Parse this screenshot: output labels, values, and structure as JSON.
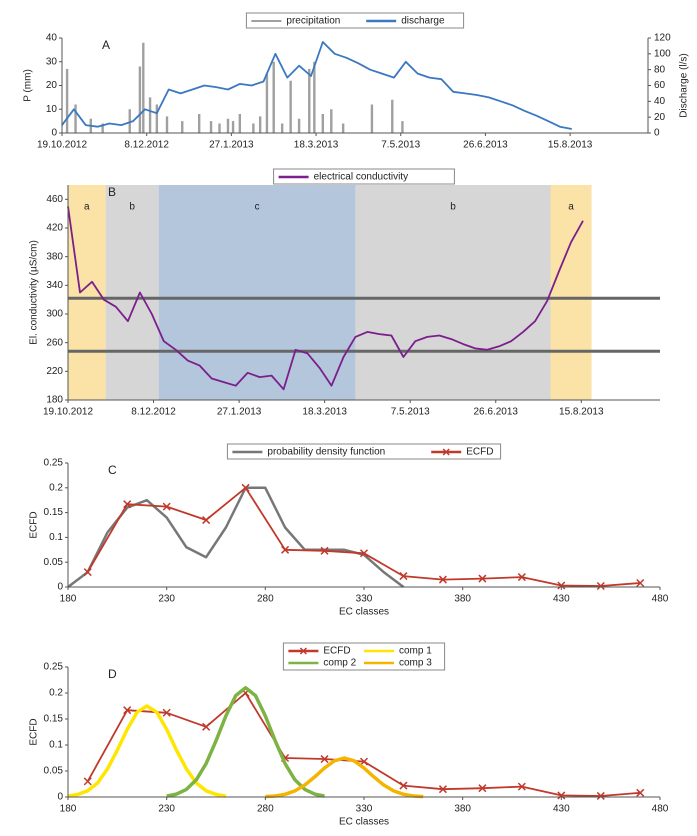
{
  "chart_data": [
    {
      "type": "combo",
      "label": "A",
      "ylabel": "P (mm)",
      "y2label": "Discharge (l/s)",
      "xlim": [
        "19.10.2012",
        "30.9.2013"
      ],
      "xticks": [
        "19.10.2012",
        "8.12.2012",
        "27.1.2013",
        "18.3.2013",
        "7.5.2013",
        "26.6.2013",
        "15.8.2013"
      ],
      "ylim": [
        0,
        40
      ],
      "yticks": [
        0,
        10,
        20,
        30,
        40
      ],
      "y2lim": [
        0,
        120
      ],
      "y2ticks": [
        0,
        20,
        40,
        60,
        80,
        100,
        120
      ],
      "series": [
        {
          "name": "precipitation",
          "type": "bar",
          "color": "#a0a0a0",
          "x": [
            "22.10.2012",
            "27.10.2012",
            "5.11.2012",
            "12.11.2012",
            "28.11.2012",
            "4.12.2012",
            "6.12.2012",
            "10.12.2012",
            "14.12.2012",
            "20.12.2012",
            "29.12.2012",
            "8.1.2013",
            "15.1.2013",
            "20.1.2013",
            "25.1.2013",
            "28.1.2013",
            "1.2.2013",
            "9.2.2013",
            "13.2.2013",
            "17.2.2013",
            "21.2.2013",
            "26.2.2013",
            "3.3.2013",
            "8.3.2013",
            "14.3.2013",
            "17.3.2013",
            "22.3.2013",
            "27.3.2013",
            "3.4.2013",
            "20.4.2013",
            "2.5.2013",
            "8.5.2013"
          ],
          "values": [
            27,
            12,
            6,
            4,
            10,
            28,
            38,
            15,
            12,
            7,
            5,
            8,
            5,
            4,
            6,
            5,
            8,
            4,
            7,
            25,
            30,
            4,
            22,
            6,
            27,
            30,
            8,
            10,
            4,
            12,
            14,
            5
          ]
        },
        {
          "name": "discharge",
          "type": "line",
          "axis": "y2",
          "color": "#3a78c2",
          "x": [
            "19.10.2012",
            "26.10.2012",
            "2.11.2012",
            "9.11.2012",
            "16.11.2012",
            "23.11.2012",
            "30.11.2012",
            "7.12.2012",
            "14.12.2012",
            "21.12.2012",
            "28.12.2012",
            "4.1.2013",
            "11.1.2013",
            "18.1.2013",
            "25.1.2013",
            "1.2.2013",
            "8.2.2013",
            "15.2.2013",
            "22.2.2013",
            "1.3.2013",
            "8.3.2013",
            "15.3.2013",
            "22.3.2013",
            "29.3.2013",
            "5.4.2013",
            "12.4.2013",
            "19.4.2013",
            "26.4.2013",
            "3.5.2013",
            "10.5.2013",
            "17.5.2013",
            "24.5.2013",
            "31.5.2013",
            "7.6.2013",
            "14.6.2013",
            "21.6.2013",
            "28.6.2013",
            "5.7.2013",
            "12.7.2013",
            "19.7.2013",
            "26.7.2013",
            "2.8.2013",
            "9.8.2013",
            "16.8.2013"
          ],
          "values": [
            10,
            30,
            10,
            8,
            12,
            10,
            15,
            30,
            25,
            55,
            50,
            55,
            60,
            58,
            55,
            62,
            60,
            65,
            100,
            70,
            85,
            72,
            115,
            100,
            95,
            88,
            80,
            75,
            70,
            90,
            75,
            70,
            68,
            52,
            50,
            48,
            45,
            40,
            35,
            28,
            22,
            15,
            8,
            5
          ]
        }
      ]
    },
    {
      "type": "line",
      "label": "B",
      "ylabel": "El. conductivity (µS/cm)",
      "xlim": [
        "19.10.2012",
        "30.9.2013"
      ],
      "xticks": [
        "19.10.2012",
        "8.12.2012",
        "27.1.2013",
        "18.3.2013",
        "7.5.2013",
        "26.6.2013",
        "15.8.2013"
      ],
      "ylim": [
        180,
        480
      ],
      "yticks": [
        180,
        220,
        260,
        300,
        340,
        380,
        420,
        460
      ],
      "hlines": [
        322,
        248
      ],
      "periods": [
        {
          "label": "a",
          "start": "19.10.2012",
          "end": "10.11.2012",
          "color": "#fbe2a6"
        },
        {
          "label": "b",
          "start": "10.11.2012",
          "end": "11.12.2012",
          "color": "#d6d6d6"
        },
        {
          "label": "c",
          "start": "11.12.2012",
          "end": "5.4.2013",
          "color": "#b4c6dc"
        },
        {
          "label": "b",
          "start": "5.4.2013",
          "end": "28.7.2013",
          "color": "#d6d6d6"
        },
        {
          "label": "a",
          "start": "28.7.2013",
          "end": "21.8.2013",
          "color": "#fbe2a6"
        }
      ],
      "series": [
        {
          "name": "electrical conductivity",
          "type": "line",
          "color": "#7b1f8c",
          "x": [
            "19.10.2012",
            "26.10.2012",
            "2.11.2012",
            "9.11.2012",
            "16.11.2012",
            "23.11.2012",
            "30.11.2012",
            "7.12.2012",
            "14.12.2012",
            "21.12.2012",
            "28.12.2012",
            "4.1.2013",
            "11.1.2013",
            "18.1.2013",
            "25.1.2013",
            "1.2.2013",
            "8.2.2013",
            "15.2.2013",
            "22.2.2013",
            "1.3.2013",
            "8.3.2013",
            "15.3.2013",
            "22.3.2013",
            "29.3.2013",
            "5.4.2013",
            "12.4.2013",
            "19.4.2013",
            "26.4.2013",
            "3.5.2013",
            "10.5.2013",
            "17.5.2013",
            "24.5.2013",
            "31.5.2013",
            "7.6.2013",
            "14.6.2013",
            "21.6.2013",
            "28.6.2013",
            "5.7.2013",
            "12.7.2013",
            "19.7.2013",
            "26.7.2013",
            "2.8.2013",
            "9.8.2013",
            "16.8.2013"
          ],
          "values": [
            450,
            330,
            345,
            320,
            310,
            290,
            330,
            300,
            262,
            250,
            235,
            228,
            210,
            205,
            200,
            218,
            212,
            214,
            195,
            250,
            245,
            225,
            200,
            240,
            268,
            275,
            272,
            270,
            240,
            262,
            268,
            270,
            265,
            258,
            252,
            250,
            255,
            262,
            275,
            290,
            318,
            360,
            400,
            430
          ]
        }
      ]
    },
    {
      "type": "line",
      "label": "C",
      "xlabel": "EC classes",
      "ylabel": "ECFD",
      "xlim": [
        180,
        480
      ],
      "xticks": [
        180,
        230,
        280,
        330,
        380,
        430,
        480
      ],
      "ylim": [
        0,
        0.25
      ],
      "yticks": [
        0,
        0.05,
        0.1,
        0.15,
        0.2,
        0.25
      ],
      "series": [
        {
          "name": "probability density function",
          "type": "line",
          "color": "#777777",
          "width": 2.5,
          "x": [
            180,
            190,
            200,
            210,
            220,
            230,
            240,
            250,
            260,
            270,
            280,
            290,
            300,
            310,
            320,
            330,
            340,
            350
          ],
          "values": [
            0,
            0.03,
            0.11,
            0.16,
            0.175,
            0.14,
            0.08,
            0.06,
            0.12,
            0.2,
            0.2,
            0.12,
            0.075,
            0.075,
            0.075,
            0.065,
            0.03,
            0
          ]
        },
        {
          "name": "ECFD",
          "type": "line",
          "marker": "x",
          "color": "#c0392b",
          "x": [
            190,
            210,
            230,
            250,
            270,
            290,
            310,
            330,
            350,
            370,
            390,
            410,
            430,
            450,
            470
          ],
          "values": [
            0.03,
            0.167,
            0.162,
            0.135,
            0.2,
            0.075,
            0.073,
            0.068,
            0.022,
            0.015,
            0.017,
            0.02,
            0.003,
            0.002,
            0.008
          ]
        }
      ]
    },
    {
      "type": "line",
      "label": "D",
      "xlabel": "EC classes",
      "ylabel": "ECFD",
      "legend_columns": 2,
      "xlim": [
        180,
        480
      ],
      "xticks": [
        180,
        230,
        280,
        330,
        380,
        430,
        480
      ],
      "ylim": [
        0,
        0.25
      ],
      "yticks": [
        0,
        0.05,
        0.1,
        0.15,
        0.2,
        0.25
      ],
      "series": [
        {
          "name": "ECFD",
          "type": "line",
          "marker": "x",
          "color": "#c0392b",
          "x": [
            190,
            210,
            230,
            250,
            270,
            290,
            310,
            330,
            350,
            370,
            390,
            410,
            430,
            450,
            470
          ],
          "values": [
            0.03,
            0.167,
            0.162,
            0.135,
            0.2,
            0.075,
            0.073,
            0.068,
            0.022,
            0.015,
            0.017,
            0.02,
            0.003,
            0.002,
            0.008
          ]
        },
        {
          "name": "comp 1",
          "type": "line",
          "color": "#ffe600",
          "width": 3.5,
          "x": [
            180,
            185,
            190,
            195,
            200,
            205,
            210,
            215,
            220,
            225,
            230,
            235,
            240,
            245,
            250,
            255,
            260
          ],
          "values": [
            0.0015,
            0.005,
            0.012,
            0.027,
            0.054,
            0.09,
            0.13,
            0.163,
            0.175,
            0.163,
            0.13,
            0.09,
            0.054,
            0.027,
            0.012,
            0.005,
            0.0015
          ]
        },
        {
          "name": "comp 2",
          "type": "line",
          "color": "#7cb342",
          "width": 3.5,
          "x": [
            230,
            235,
            240,
            245,
            250,
            255,
            260,
            265,
            270,
            275,
            280,
            285,
            290,
            295,
            300,
            305,
            310
          ],
          "values": [
            0.0018,
            0.0056,
            0.0147,
            0.033,
            0.0643,
            0.108,
            0.156,
            0.195,
            0.21,
            0.195,
            0.156,
            0.108,
            0.0643,
            0.033,
            0.0147,
            0.0056,
            0.0018
          ]
        },
        {
          "name": "comp 3",
          "type": "line",
          "color": "#f4b400",
          "width": 3.5,
          "x": [
            280,
            285,
            290,
            295,
            300,
            305,
            310,
            315,
            320,
            325,
            330,
            335,
            340,
            345,
            350,
            355,
            360
          ],
          "values": [
            0.0007,
            0.002,
            0.0052,
            0.0118,
            0.023,
            0.0386,
            0.0558,
            0.0697,
            0.075,
            0.0697,
            0.0558,
            0.0386,
            0.023,
            0.0118,
            0.0052,
            0.002,
            0.0007
          ]
        }
      ]
    }
  ]
}
